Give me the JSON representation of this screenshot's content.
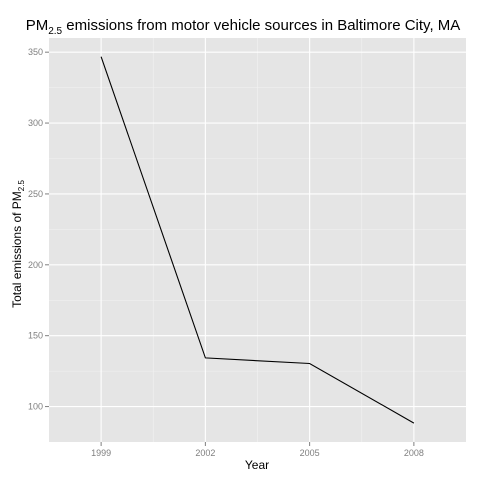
{
  "chart_data": {
    "type": "line",
    "title": {
      "main": "PM",
      "subscript": "2.5",
      "rest": " emissions from motor vehicle sources in Baltimore City, MA"
    },
    "xlabel": "Year",
    "ylabel": {
      "main": "Total emissions of PM",
      "subscript": "2.5"
    },
    "x": [
      1999,
      2002,
      2005,
      2008
    ],
    "values": [
      346.8,
      134.3,
      130.4,
      88.3
    ],
    "x_ticks": [
      1999,
      2002,
      2005,
      2008
    ],
    "y_ticks": [
      100,
      150,
      200,
      250,
      300,
      350
    ],
    "xlim": [
      1997.5,
      2009.5
    ],
    "ylim": [
      75,
      360
    ],
    "grid": true,
    "colors": {
      "panel": "#e5e5e5",
      "grid_major": "#ffffff",
      "grid_minor": "#f2f2f2",
      "line": "#000000"
    }
  }
}
